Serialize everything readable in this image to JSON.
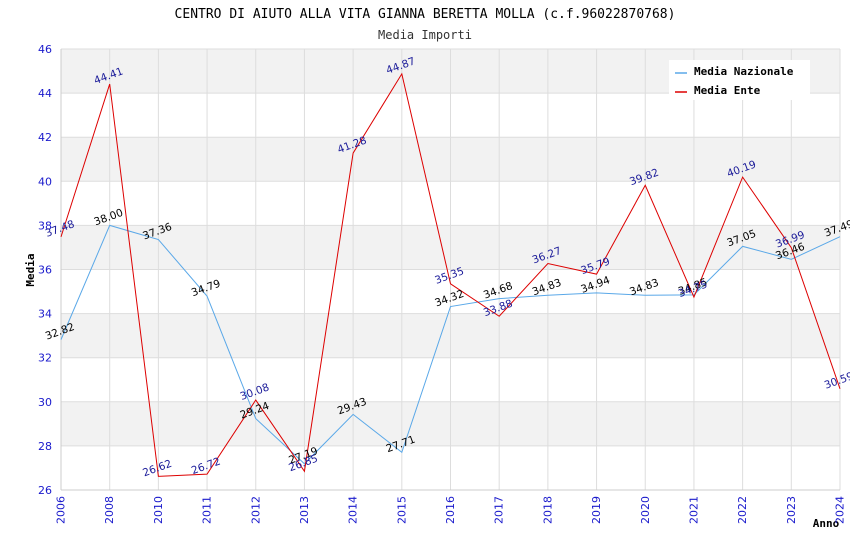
{
  "chart_data": {
    "type": "line",
    "title": "CENTRO DI AIUTO ALLA VITA GIANNA BERETTA MOLLA (c.f.96022870768)",
    "subtitle": "Media Importi",
    "xlabel": "Anno",
    "ylabel": "Media",
    "ylim": [
      26,
      46
    ],
    "yticks": [
      "26",
      "28",
      "30",
      "32",
      "34",
      "36",
      "38",
      "40",
      "42",
      "44",
      "46"
    ],
    "x": [
      "2006",
      "2008",
      "2010",
      "2011",
      "2012",
      "2013",
      "2014",
      "2015",
      "2016",
      "2017",
      "2018",
      "2019",
      "2020",
      "2021",
      "2022",
      "2023",
      "2024"
    ],
    "grid": true,
    "legend_position": "top-right",
    "series": [
      {
        "name": "Media Nazionale",
        "color": "#5aa8e8",
        "label_color": "#000000",
        "values": [
          32.82,
          38.0,
          37.36,
          34.79,
          29.24,
          27.19,
          29.43,
          27.71,
          34.32,
          34.68,
          34.83,
          34.94,
          34.83,
          34.85,
          37.05,
          36.46,
          37.49
        ],
        "labels": [
          "32.82",
          "38.00",
          "37.36",
          "34.79",
          "29.24",
          "27.19",
          "29.43",
          "27.71",
          "34.32",
          "34.68",
          "34.83",
          "34.94",
          "34.83",
          "34.85",
          "37.05",
          "36.46",
          "37.49"
        ]
      },
      {
        "name": "Media Ente",
        "color": "#dd0000",
        "label_color": "#1a1a99",
        "values": [
          37.48,
          44.41,
          26.62,
          26.72,
          30.08,
          26.85,
          41.28,
          44.87,
          35.35,
          33.88,
          36.27,
          35.79,
          39.82,
          34.75,
          40.19,
          36.99,
          30.59
        ],
        "labels": [
          "37.48",
          "44.41",
          "26.62",
          "26.72",
          "30.08",
          "26.85",
          "41.28",
          "44.87",
          "35.35",
          "33.88",
          "36.27",
          "35.79",
          "39.82",
          "34.75",
          "40.19",
          "36.99",
          "30.59"
        ]
      }
    ]
  }
}
